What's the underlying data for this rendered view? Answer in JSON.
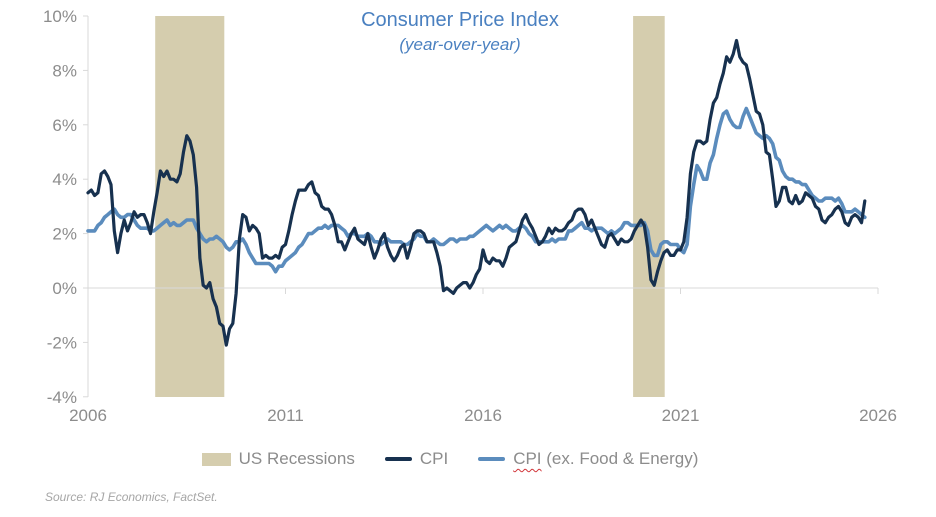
{
  "title": {
    "text": "Consumer Price Index",
    "subtitle": "(year-over-year)"
  },
  "legend": {
    "recessions": "US Recessions",
    "cpi": "CPI",
    "core_word": "CPI",
    "core_rest": " (ex. Food & Energy)"
  },
  "source": "Source: RJ Economics, FactSet.",
  "colors": {
    "cpi": "#17314F",
    "core_cpi": "#5B8CBD",
    "recession": "#D5CDAE",
    "title_blue": "#4A80C0",
    "axis_text": "#8C8C8C",
    "grid": "#D9D9D9",
    "source_text": "#A6A6A6",
    "squiggle_red": "#D13438"
  },
  "chart_data": {
    "type": "line",
    "title": "Consumer Price Index",
    "subtitle": "(year-over-year)",
    "xlim": [
      2006,
      2026
    ],
    "ylim": [
      -4,
      10
    ],
    "x_start": 2006.0,
    "points_per_year": 12,
    "x_ticks": [
      "2006",
      "2011",
      "2016",
      "2021",
      "2026"
    ],
    "y_ticks": [
      "10%",
      "8%",
      "6%",
      "4%",
      "2%",
      "0%",
      "-2%",
      "-4%"
    ],
    "gridlines": [
      0
    ],
    "legend_position": "bottom",
    "recessions": [
      {
        "start": 2007.7,
        "end": 2009.45
      },
      {
        "start": 2019.8,
        "end": 2020.6
      }
    ],
    "series": [
      {
        "name": "CPI (ex. Food & Energy)",
        "slug": "core-cpi",
        "color": "#5B8CBD",
        "width": 3.6,
        "z": 0,
        "values": [
          2.1,
          2.1,
          2.1,
          2.3,
          2.4,
          2.6,
          2.7,
          2.8,
          2.9,
          2.7,
          2.6,
          2.6,
          2.7,
          2.7,
          2.5,
          2.3,
          2.2,
          2.2,
          2.2,
          2.1,
          2.1,
          2.2,
          2.3,
          2.4,
          2.5,
          2.3,
          2.4,
          2.3,
          2.3,
          2.4,
          2.5,
          2.5,
          2.5,
          2.2,
          2.0,
          1.8,
          1.7,
          1.8,
          1.8,
          1.9,
          1.8,
          1.7,
          1.5,
          1.4,
          1.5,
          1.7,
          1.7,
          1.8,
          1.6,
          1.3,
          1.1,
          0.9,
          0.9,
          0.9,
          0.9,
          0.9,
          0.8,
          0.6,
          0.8,
          0.8,
          1.0,
          1.1,
          1.2,
          1.3,
          1.5,
          1.6,
          1.8,
          2.0,
          2.0,
          2.1,
          2.2,
          2.2,
          2.3,
          2.2,
          2.3,
          2.3,
          2.3,
          2.2,
          2.1,
          1.9,
          2.0,
          2.0,
          1.9,
          1.9,
          1.9,
          2.0,
          1.9,
          1.7,
          1.7,
          1.6,
          1.7,
          1.8,
          1.7,
          1.7,
          1.7,
          1.7,
          1.6,
          1.6,
          1.7,
          1.8,
          2.0,
          1.9,
          1.9,
          1.7,
          1.7,
          1.8,
          1.7,
          1.6,
          1.6,
          1.7,
          1.8,
          1.8,
          1.7,
          1.8,
          1.8,
          1.8,
          1.9,
          1.9,
          2.0,
          2.1,
          2.2,
          2.3,
          2.2,
          2.1,
          2.2,
          2.3,
          2.2,
          2.3,
          2.2,
          2.1,
          2.1,
          2.2,
          2.3,
          2.2,
          2.0,
          1.9,
          1.7,
          1.7,
          1.7,
          1.7,
          1.7,
          1.8,
          1.7,
          1.8,
          1.8,
          1.8,
          2.1,
          2.1,
          2.2,
          2.3,
          2.4,
          2.2,
          2.2,
          2.1,
          2.2,
          2.2,
          2.2,
          2.1,
          2.0,
          2.1,
          2.0,
          2.1,
          2.2,
          2.4,
          2.4,
          2.3,
          2.3,
          2.3,
          2.3,
          2.4,
          2.1,
          1.4,
          1.2,
          1.2,
          1.6,
          1.7,
          1.7,
          1.6,
          1.6,
          1.6,
          1.4,
          1.3,
          1.6,
          3.0,
          3.8,
          4.5,
          4.3,
          4.0,
          4.0,
          4.6,
          4.9,
          5.5,
          6.0,
          6.4,
          6.5,
          6.2,
          6.0,
          5.9,
          5.9,
          6.3,
          6.6,
          6.3,
          6.0,
          5.7,
          5.6,
          5.5,
          5.6,
          5.5,
          5.3,
          4.8,
          4.7,
          4.3,
          4.1,
          4.0,
          4.0,
          3.9,
          3.9,
          3.8,
          3.8,
          3.6,
          3.4,
          3.3,
          3.2,
          3.2,
          3.3,
          3.3,
          3.3,
          3.2,
          3.3,
          3.1,
          2.8,
          2.8,
          2.8,
          2.9,
          2.8,
          2.7,
          2.6
        ]
      },
      {
        "name": "CPI",
        "slug": "cpi",
        "color": "#17314F",
        "width": 3.2,
        "z": 1,
        "values": [
          3.5,
          3.6,
          3.4,
          3.5,
          4.2,
          4.3,
          4.1,
          3.8,
          2.1,
          1.3,
          2.0,
          2.5,
          2.1,
          2.4,
          2.8,
          2.6,
          2.7,
          2.7,
          2.4,
          2.0,
          2.8,
          3.5,
          4.3,
          4.1,
          4.3,
          4.0,
          4.0,
          3.9,
          4.2,
          5.0,
          5.6,
          5.4,
          4.9,
          3.7,
          1.1,
          0.1,
          0.0,
          0.2,
          -0.4,
          -0.7,
          -1.3,
          -1.4,
          -2.1,
          -1.5,
          -1.3,
          -0.2,
          1.8,
          2.7,
          2.6,
          2.1,
          2.3,
          2.2,
          2.0,
          1.1,
          1.2,
          1.1,
          1.1,
          1.2,
          1.1,
          1.5,
          1.6,
          2.1,
          2.7,
          3.2,
          3.6,
          3.6,
          3.6,
          3.8,
          3.9,
          3.5,
          3.4,
          3.0,
          2.9,
          2.9,
          2.7,
          2.3,
          1.7,
          1.7,
          1.4,
          1.7,
          2.0,
          2.2,
          1.8,
          1.7,
          1.6,
          2.0,
          1.5,
          1.1,
          1.4,
          1.8,
          2.0,
          1.5,
          1.2,
          1.0,
          1.2,
          1.5,
          1.6,
          1.1,
          1.5,
          2.0,
          2.1,
          2.1,
          2.0,
          1.7,
          1.7,
          1.7,
          1.3,
          0.8,
          -0.1,
          0.0,
          -0.1,
          -0.2,
          0.0,
          0.1,
          0.2,
          0.2,
          0.0,
          0.2,
          0.5,
          0.7,
          1.4,
          1.0,
          0.9,
          1.1,
          1.0,
          1.0,
          0.8,
          1.1,
          1.5,
          1.6,
          1.7,
          2.1,
          2.5,
          2.7,
          2.4,
          2.2,
          1.9,
          1.6,
          1.7,
          1.9,
          2.2,
          2.0,
          2.2,
          2.1,
          2.1,
          2.2,
          2.4,
          2.5,
          2.8,
          2.9,
          2.9,
          2.7,
          2.3,
          2.5,
          2.2,
          1.9,
          1.6,
          1.5,
          1.9,
          2.0,
          1.8,
          1.6,
          1.8,
          1.7,
          1.7,
          1.8,
          2.1,
          2.3,
          2.5,
          2.3,
          1.5,
          0.3,
          0.1,
          0.6,
          1.0,
          1.3,
          1.4,
          1.2,
          1.2,
          1.4,
          1.4,
          1.7,
          2.6,
          4.2,
          5.0,
          5.4,
          5.4,
          5.3,
          5.4,
          6.2,
          6.8,
          7.0,
          7.5,
          7.9,
          8.5,
          8.3,
          8.6,
          9.1,
          8.5,
          8.3,
          8.2,
          7.7,
          7.1,
          6.5,
          6.4,
          6.0,
          5.0,
          4.9,
          4.0,
          3.0,
          3.2,
          3.7,
          3.7,
          3.2,
          3.1,
          3.4,
          3.1,
          3.2,
          3.5,
          3.4,
          3.3,
          3.0,
          2.9,
          2.5,
          2.4,
          2.6,
          2.7,
          2.9,
          3.0,
          2.8,
          2.4,
          2.3,
          2.6,
          2.7,
          2.6,
          2.4,
          3.2
        ]
      }
    ]
  }
}
